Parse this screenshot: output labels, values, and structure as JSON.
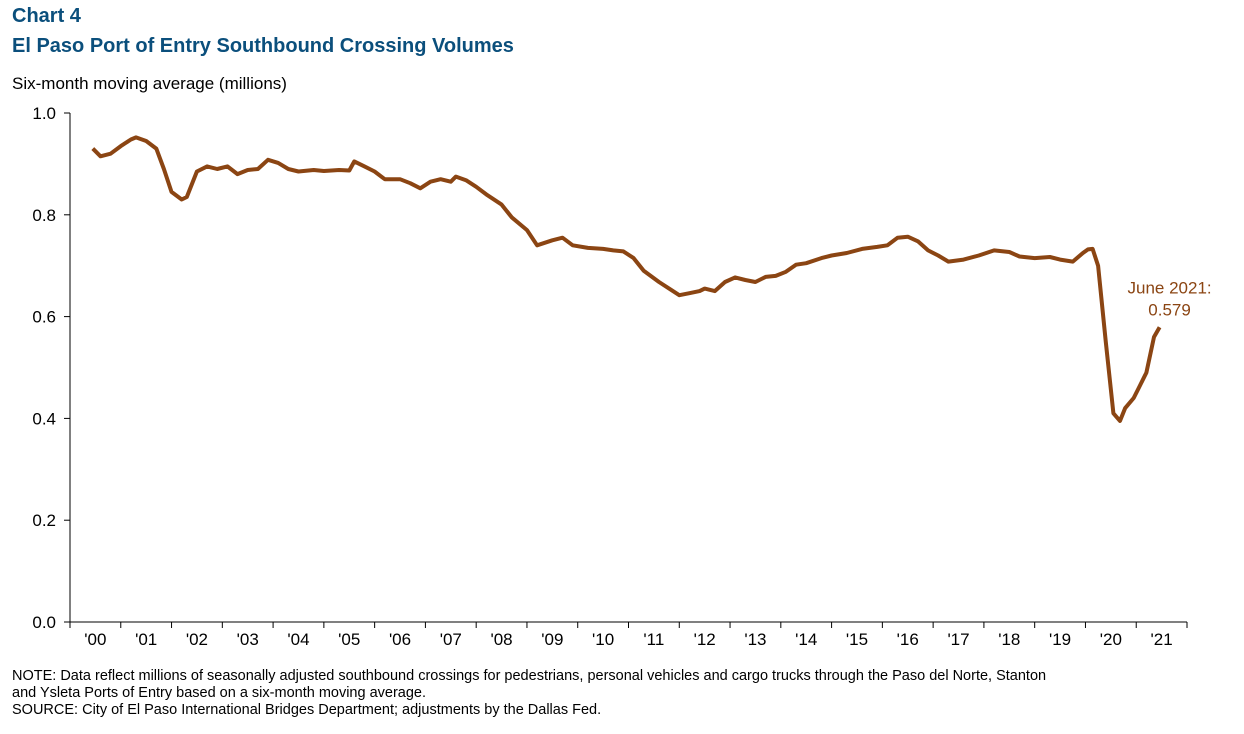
{
  "chart_data": {
    "type": "line",
    "title_lines": [
      "Chart 4",
      "El Paso Port of Entry Southbound Crossing Volumes"
    ],
    "y_label": "Six-month moving average (millions)",
    "x": [
      2000.45,
      2000.6,
      2000.8,
      2001.0,
      2001.2,
      2001.3,
      2001.5,
      2001.7,
      2001.85,
      2002.0,
      2002.2,
      2002.3,
      2002.5,
      2002.7,
      2002.9,
      2003.1,
      2003.3,
      2003.5,
      2003.7,
      2003.9,
      2004.1,
      2004.3,
      2004.5,
      2004.8,
      2005.0,
      2005.3,
      2005.5,
      2005.6,
      2005.8,
      2006.0,
      2006.2,
      2006.5,
      2006.7,
      2006.9,
      2007.1,
      2007.3,
      2007.5,
      2007.6,
      2007.8,
      2008.0,
      2008.2,
      2008.5,
      2008.7,
      2009.0,
      2009.2,
      2009.5,
      2009.7,
      2009.9,
      2010.2,
      2010.5,
      2010.7,
      2010.9,
      2011.1,
      2011.3,
      2011.6,
      2011.8,
      2012.0,
      2012.2,
      2012.4,
      2012.5,
      2012.7,
      2012.9,
      2013.1,
      2013.3,
      2013.5,
      2013.7,
      2013.9,
      2014.1,
      2014.3,
      2014.5,
      2014.8,
      2015.0,
      2015.3,
      2015.6,
      2015.9,
      2016.1,
      2016.3,
      2016.5,
      2016.7,
      2016.9,
      2017.1,
      2017.3,
      2017.6,
      2017.9,
      2018.2,
      2018.5,
      2018.7,
      2019.0,
      2019.3,
      2019.5,
      2019.75,
      2019.95,
      2020.05,
      2020.14,
      2020.25,
      2020.4,
      2020.55,
      2020.68,
      2020.78,
      2020.95,
      2021.05,
      2021.2,
      2021.35,
      2021.46
    ],
    "series": [
      {
        "color": "#8b4513",
        "values": [
          0.93,
          0.915,
          0.92,
          0.935,
          0.948,
          0.952,
          0.945,
          0.93,
          0.89,
          0.845,
          0.83,
          0.835,
          0.885,
          0.895,
          0.89,
          0.895,
          0.88,
          0.888,
          0.89,
          0.908,
          0.902,
          0.89,
          0.885,
          0.888,
          0.886,
          0.888,
          0.887,
          0.905,
          0.895,
          0.885,
          0.87,
          0.87,
          0.862,
          0.852,
          0.865,
          0.87,
          0.865,
          0.875,
          0.868,
          0.855,
          0.84,
          0.82,
          0.795,
          0.77,
          0.74,
          0.75,
          0.755,
          0.74,
          0.735,
          0.733,
          0.73,
          0.728,
          0.715,
          0.69,
          0.668,
          0.655,
          0.642,
          0.646,
          0.65,
          0.655,
          0.65,
          0.668,
          0.677,
          0.672,
          0.668,
          0.678,
          0.68,
          0.688,
          0.702,
          0.705,
          0.715,
          0.72,
          0.725,
          0.733,
          0.737,
          0.74,
          0.755,
          0.757,
          0.748,
          0.73,
          0.72,
          0.708,
          0.712,
          0.72,
          0.73,
          0.727,
          0.718,
          0.715,
          0.717,
          0.712,
          0.708,
          0.725,
          0.732,
          0.733,
          0.7,
          0.55,
          0.41,
          0.395,
          0.42,
          0.44,
          0.46,
          0.49,
          0.56,
          0.579
        ]
      }
    ],
    "xlim": [
      2000,
      2022
    ],
    "xticks": [
      {
        "value": 2000,
        "label": "'00"
      },
      {
        "value": 2001,
        "label": "'01"
      },
      {
        "value": 2002,
        "label": "'02"
      },
      {
        "value": 2003,
        "label": "'03"
      },
      {
        "value": 2004,
        "label": "'04"
      },
      {
        "value": 2005,
        "label": "'05"
      },
      {
        "value": 2006,
        "label": "'06"
      },
      {
        "value": 2007,
        "label": "'07"
      },
      {
        "value": 2008,
        "label": "'08"
      },
      {
        "value": 2009,
        "label": "'09"
      },
      {
        "value": 2010,
        "label": "'10"
      },
      {
        "value": 2011,
        "label": "'11"
      },
      {
        "value": 2012,
        "label": "'12"
      },
      {
        "value": 2013,
        "label": "'13"
      },
      {
        "value": 2014,
        "label": "'14"
      },
      {
        "value": 2015,
        "label": "'15"
      },
      {
        "value": 2016,
        "label": "'16"
      },
      {
        "value": 2017,
        "label": "'17"
      },
      {
        "value": 2018,
        "label": "'18"
      },
      {
        "value": 2019,
        "label": "'19"
      },
      {
        "value": 2020,
        "label": "'20"
      },
      {
        "value": 2021,
        "label": "'21"
      }
    ],
    "ylim": [
      0,
      1
    ],
    "yticks": [
      {
        "value": 0,
        "label": "0.0"
      },
      0.2,
      0.4,
      0.6,
      0.8,
      {
        "value": 1,
        "label": "1.0"
      }
    ],
    "grid": false,
    "annotation_lines": [
      "June 2021:",
      "0.579"
    ],
    "notes": [
      "NOTE:  Data reflect millions of seasonally adjusted southbound crossings for pedestrians, personal vehicles and cargo trucks through the Paso del Norte, Stanton",
      "and Ysleta Ports of Entry based on a six-month moving average.",
      "SOURCE:  City of El Paso International Bridges Department; adjustments  by the Dallas Fed."
    ]
  }
}
